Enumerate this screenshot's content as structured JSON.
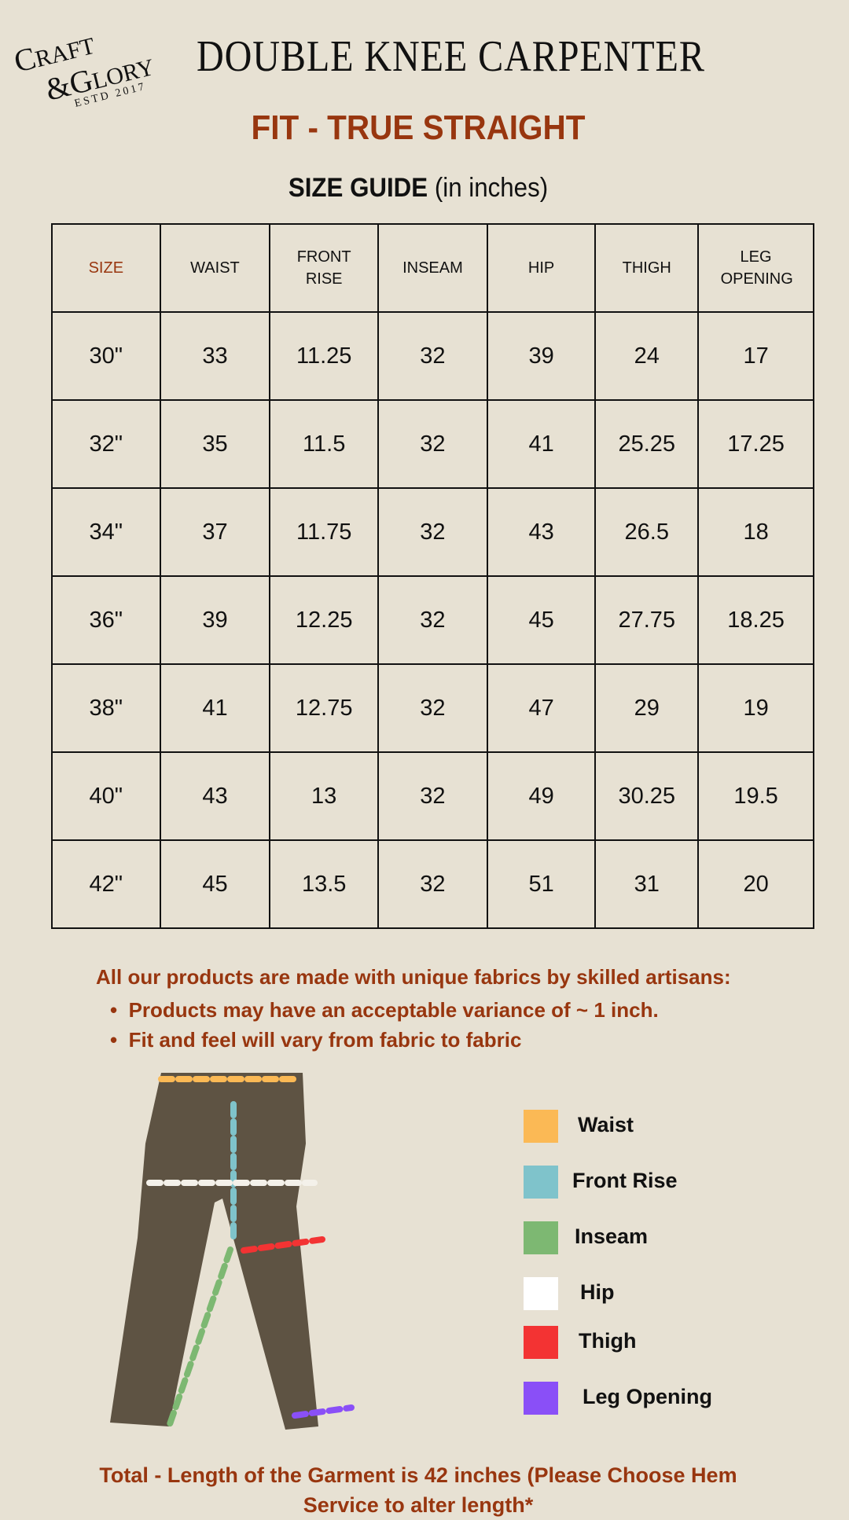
{
  "brand": {
    "logo_text": "Craft & Glory",
    "logo_sub": "ESTD 2017"
  },
  "header": {
    "title": "DOUBLE KNEE CARPENTER",
    "fit": "FIT - TRUE STRAIGHT",
    "guide_bold": "SIZE GUIDE",
    "guide_rest": " (in inches)"
  },
  "table": {
    "headers": [
      "SIZE",
      "WAIST",
      "FRONT RISE",
      "INSEAM",
      "HIP",
      "THIGH",
      "LEG OPENING"
    ],
    "rows": [
      [
        "30\"",
        "33",
        "11.25",
        "32",
        "39",
        "24",
        "17"
      ],
      [
        "32\"",
        "35",
        "11.5",
        "32",
        "41",
        "25.25",
        "17.25"
      ],
      [
        "34\"",
        "37",
        "11.75",
        "32",
        "43",
        "26.5",
        "18"
      ],
      [
        "36\"",
        "39",
        "12.25",
        "32",
        "45",
        "27.75",
        "18.25"
      ],
      [
        "38\"",
        "41",
        "12.75",
        "32",
        "47",
        "29",
        "19"
      ],
      [
        "40\"",
        "43",
        "13",
        "32",
        "49",
        "30.25",
        "19.5"
      ],
      [
        "42\"",
        "45",
        "13.5",
        "32",
        "51",
        "31",
        "20"
      ]
    ]
  },
  "notes": {
    "intro": "All our products are made with unique fabrics by skilled artisans:",
    "bullets": [
      "Products may have an acceptable variance of ~ 1 inch.",
      "Fit and feel will vary from fabric to fabric"
    ]
  },
  "legend": [
    {
      "label": "Waist",
      "color": "#fbb955"
    },
    {
      "label": "Front Rise",
      "color": "#7fc3cb"
    },
    {
      "label": "Inseam",
      "color": "#7db872"
    },
    {
      "label": "Hip",
      "color": "#ffffff"
    },
    {
      "label": "Thigh",
      "color": "#f33333"
    },
    {
      "label": "Leg Opening",
      "color": "#8a4ff7"
    }
  ],
  "footer": {
    "line1": "Total - Length of the Garment is 42 inches (Please Choose Hem",
    "line2": "Service to alter length*"
  },
  "colors": {
    "accent": "#98360f",
    "background": "#e7e1d3"
  }
}
